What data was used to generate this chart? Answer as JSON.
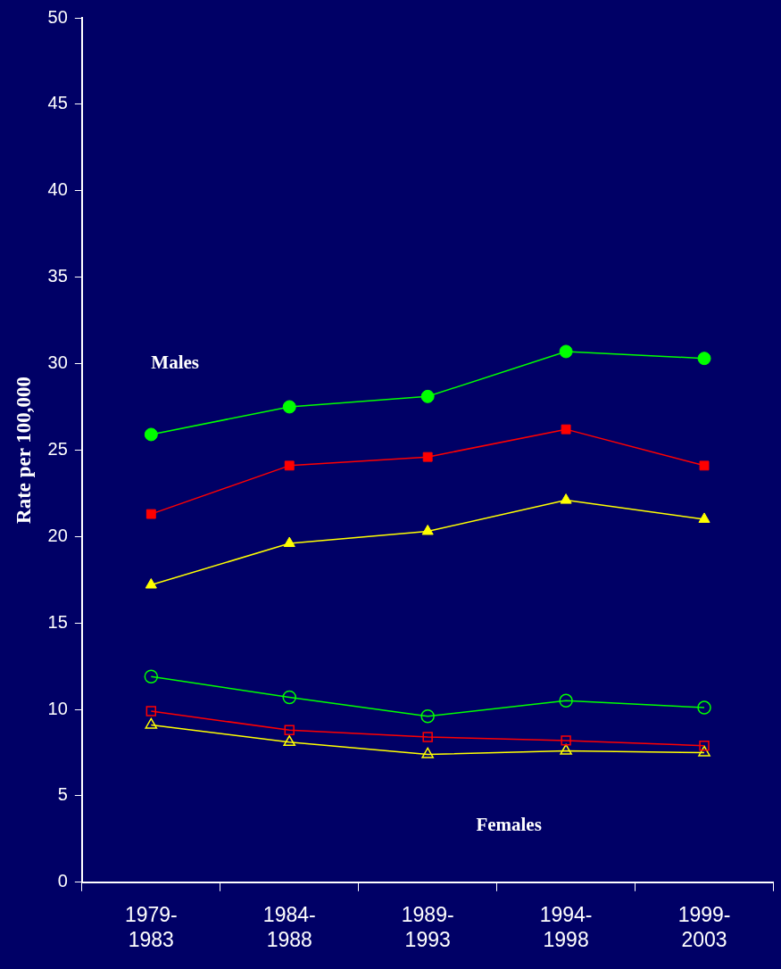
{
  "chart_data": {
    "type": "line",
    "ylabel": "Rate per 100,000",
    "categories": [
      "1979-1983",
      "1984-1988",
      "1989-1993",
      "1994-1998",
      "1999-2003"
    ],
    "series": [
      {
        "color": "#00ff00",
        "marker": "circle",
        "values": [
          25.9,
          27.5,
          28.1,
          30.7,
          30.3
        ]
      },
      {
        "color": "#ff0000",
        "marker": "square",
        "values": [
          21.3,
          24.1,
          24.6,
          26.2,
          24.1
        ]
      },
      {
        "color": "#ffff00",
        "marker": "triangle",
        "values": [
          17.2,
          19.6,
          20.3,
          22.1,
          21.0
        ]
      },
      {
        "color": "#00ff00",
        "marker": "circle",
        "values": [
          11.9,
          10.7,
          9.6,
          10.5,
          10.1
        ]
      },
      {
        "color": "#ff0000",
        "marker": "square",
        "values": [
          9.9,
          8.8,
          8.4,
          8.2,
          7.9
        ]
      },
      {
        "color": "#ffff00",
        "marker": "triangle",
        "values": [
          9.1,
          8.1,
          7.4,
          7.6,
          7.5
        ]
      }
    ],
    "ylim": [
      0,
      50
    ],
    "yticks": [
      0,
      5,
      10,
      15,
      20,
      25,
      30,
      35,
      40,
      45,
      50
    ],
    "grid": false,
    "legend": false,
    "annotations": [
      "Males",
      "Females"
    ]
  }
}
